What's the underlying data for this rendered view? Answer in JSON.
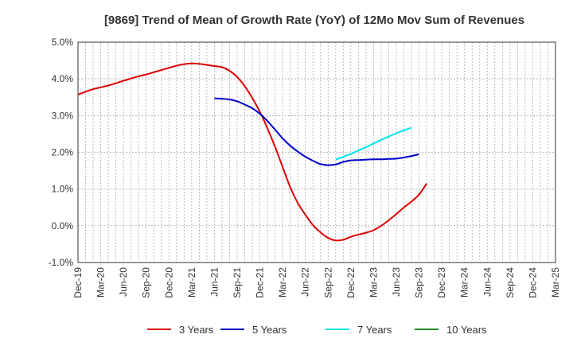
{
  "chart_data": {
    "type": "line",
    "title": "[9869]  Trend of Mean of Growth Rate (YoY) of 12Mo Mov Sum of Revenues",
    "xlabel": "",
    "ylabel": "",
    "ylim": [
      -1.0,
      5.0
    ],
    "yticks": [
      -1.0,
      0.0,
      1.0,
      2.0,
      3.0,
      4.0,
      5.0
    ],
    "ytick_labels": [
      "-1.0%",
      "0.0%",
      "1.0%",
      "2.0%",
      "3.0%",
      "4.0%",
      "5.0%"
    ],
    "x_ticks": [
      "Dec-19",
      "Mar-20",
      "Jun-20",
      "Sep-20",
      "Dec-20",
      "Mar-21",
      "Jun-21",
      "Sep-21",
      "Dec-21",
      "Mar-22",
      "Jun-22",
      "Sep-22",
      "Dec-22",
      "Mar-23",
      "Jun-23",
      "Sep-23",
      "Dec-23",
      "Mar-24",
      "Jun-24",
      "Sep-24",
      "Dec-24",
      "Mar-25"
    ],
    "grid": true,
    "legend_position": "bottom",
    "series": [
      {
        "name": "3 Years",
        "color": "#dd0000",
        "start_index": 0,
        "values": [
          3.57,
          3.65,
          3.72,
          3.77,
          3.82,
          3.88,
          3.95,
          4.01,
          4.07,
          4.12,
          4.18,
          4.24,
          4.3,
          4.36,
          4.4,
          4.42,
          4.41,
          4.38,
          4.35,
          4.32,
          4.22,
          4.05,
          3.8,
          3.48,
          3.1,
          2.65,
          2.15,
          1.6,
          1.05,
          0.62,
          0.3,
          0.02,
          -0.18,
          -0.33,
          -0.4,
          -0.38,
          -0.3,
          -0.24,
          -0.19,
          -0.12,
          0.0,
          0.15,
          0.32,
          0.5,
          0.66,
          0.85,
          1.15
        ]
      },
      {
        "name": "5 Years",
        "color": "#0000cc",
        "start_index": 18,
        "values": [
          3.47,
          3.46,
          3.44,
          3.39,
          3.3,
          3.2,
          3.05,
          2.85,
          2.62,
          2.38,
          2.18,
          2.02,
          1.88,
          1.77,
          1.68,
          1.65,
          1.67,
          1.74,
          1.78,
          1.79,
          1.8,
          1.81,
          1.81,
          1.82,
          1.83,
          1.86,
          1.9,
          1.95
        ]
      },
      {
        "name": "7 Years",
        "color": "#00e5ee",
        "start_index": 34,
        "values": [
          1.8,
          1.88,
          1.96,
          2.05,
          2.14,
          2.24,
          2.34,
          2.43,
          2.52,
          2.6,
          2.67
        ]
      },
      {
        "name": "10 Years",
        "color": "#228b22",
        "start_index": 0,
        "values": []
      }
    ]
  }
}
